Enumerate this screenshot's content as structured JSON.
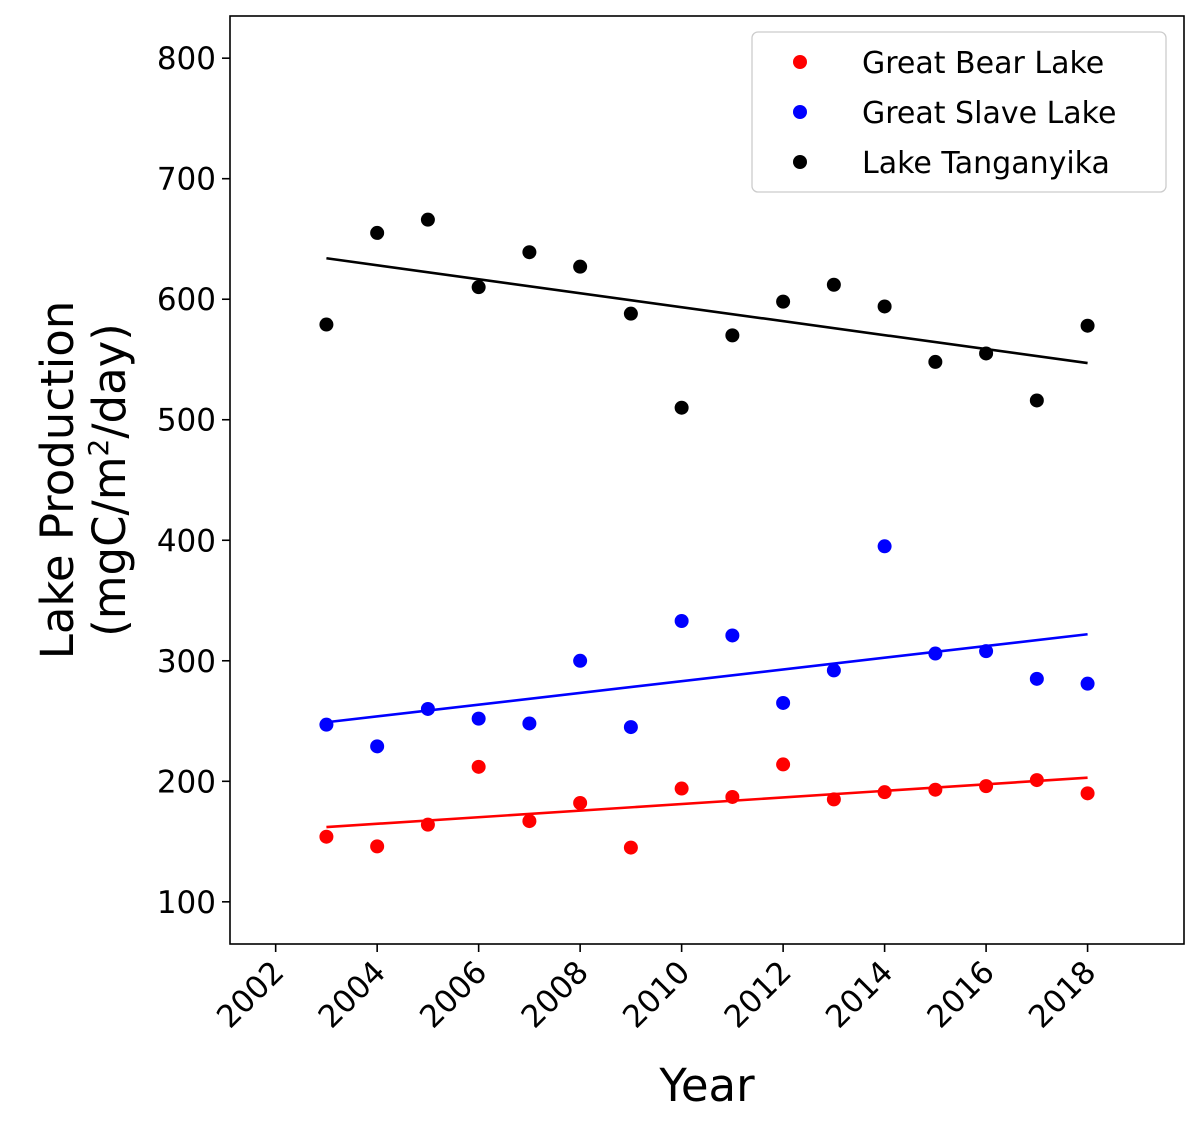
{
  "chart_data": {
    "type": "scatter",
    "title": "",
    "xlabel": "Year",
    "ylabel_line1": "Lake Production",
    "ylabel_line2_prefix": "(mgC/m",
    "ylabel_line2_sup": "2",
    "ylabel_line2_suffix": "/day)",
    "xlim": [
      2001.1,
      2019.9
    ],
    "ylim": [
      65,
      835
    ],
    "x_ticks": [
      2002,
      2004,
      2006,
      2008,
      2010,
      2012,
      2014,
      2016,
      2018
    ],
    "y_ticks": [
      100,
      200,
      300,
      400,
      500,
      600,
      700,
      800
    ],
    "grid": false,
    "legend_position": "top-right",
    "series": [
      {
        "name": "Great Bear Lake",
        "color": "#ff0000",
        "x": [
          2003,
          2004,
          2005,
          2006,
          2007,
          2008,
          2009,
          2010,
          2011,
          2012,
          2013,
          2014,
          2015,
          2016,
          2017,
          2018
        ],
        "y": [
          154,
          146,
          164,
          212,
          167,
          182,
          145,
          194,
          187,
          214,
          185,
          191,
          193,
          196,
          201,
          190
        ],
        "trend": {
          "x": [
            2003,
            2018
          ],
          "y": [
            162,
            203
          ]
        }
      },
      {
        "name": "Great Slave Lake",
        "color": "#0000ff",
        "x": [
          2003,
          2004,
          2005,
          2006,
          2007,
          2008,
          2009,
          2010,
          2011,
          2012,
          2013,
          2014,
          2015,
          2016,
          2017,
          2018
        ],
        "y": [
          247,
          229,
          260,
          252,
          248,
          300,
          245,
          333,
          321,
          265,
          292,
          395,
          306,
          308,
          285,
          281
        ],
        "trend": {
          "x": [
            2003,
            2018
          ],
          "y": [
            249,
            322
          ]
        }
      },
      {
        "name": "Lake Tanganyika",
        "color": "#000000",
        "x": [
          2003,
          2004,
          2005,
          2006,
          2007,
          2008,
          2009,
          2010,
          2011,
          2012,
          2013,
          2014,
          2015,
          2016,
          2017,
          2018
        ],
        "y": [
          579,
          655,
          666,
          610,
          639,
          627,
          588,
          510,
          570,
          598,
          612,
          594,
          548,
          555,
          516,
          578
        ],
        "trend": {
          "x": [
            2003,
            2018
          ],
          "y": [
            634,
            547
          ]
        }
      }
    ]
  }
}
